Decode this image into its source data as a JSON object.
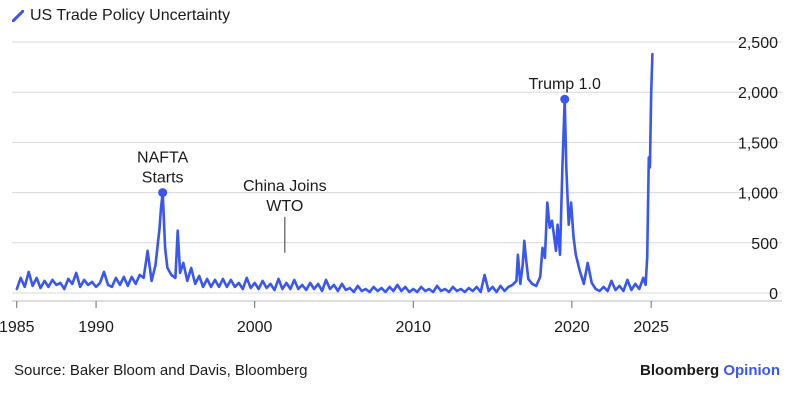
{
  "chart_data": {
    "type": "line",
    "title": "US Trade Policy Uncertainty",
    "series": [
      {
        "name": "US Trade Policy Uncertainty",
        "color": "#3a56f0",
        "points": [
          [
            1985.0,
            40
          ],
          [
            1985.25,
            150
          ],
          [
            1985.5,
            60
          ],
          [
            1985.75,
            210
          ],
          [
            1986.0,
            70
          ],
          [
            1986.25,
            150
          ],
          [
            1986.5,
            50
          ],
          [
            1986.75,
            120
          ],
          [
            1987.0,
            60
          ],
          [
            1987.25,
            130
          ],
          [
            1987.5,
            80
          ],
          [
            1987.75,
            100
          ],
          [
            1988.0,
            40
          ],
          [
            1988.25,
            140
          ],
          [
            1988.5,
            90
          ],
          [
            1988.75,
            200
          ],
          [
            1989.0,
            60
          ],
          [
            1989.25,
            130
          ],
          [
            1989.5,
            80
          ],
          [
            1989.75,
            110
          ],
          [
            1990.0,
            60
          ],
          [
            1990.25,
            100
          ],
          [
            1990.5,
            210
          ],
          [
            1990.75,
            80
          ],
          [
            1991.0,
            60
          ],
          [
            1991.25,
            150
          ],
          [
            1991.5,
            80
          ],
          [
            1991.75,
            160
          ],
          [
            1992.0,
            70
          ],
          [
            1992.25,
            160
          ],
          [
            1992.5,
            90
          ],
          [
            1992.75,
            180
          ],
          [
            1993.0,
            150
          ],
          [
            1993.25,
            420
          ],
          [
            1993.5,
            120
          ],
          [
            1993.75,
            280
          ],
          [
            1994.0,
            640
          ],
          [
            1994.1,
            860
          ],
          [
            1994.2,
            1000
          ],
          [
            1994.35,
            450
          ],
          [
            1994.5,
            250
          ],
          [
            1994.75,
            180
          ],
          [
            1995.0,
            150
          ],
          [
            1995.15,
            620
          ],
          [
            1995.3,
            200
          ],
          [
            1995.5,
            300
          ],
          [
            1995.75,
            120
          ],
          [
            1996.0,
            250
          ],
          [
            1996.25,
            90
          ],
          [
            1996.5,
            170
          ],
          [
            1996.75,
            60
          ],
          [
            1997.0,
            140
          ],
          [
            1997.25,
            60
          ],
          [
            1997.5,
            130
          ],
          [
            1997.75,
            60
          ],
          [
            1998.0,
            140
          ],
          [
            1998.25,
            60
          ],
          [
            1998.5,
            130
          ],
          [
            1998.75,
            60
          ],
          [
            1999.0,
            100
          ],
          [
            1999.25,
            40
          ],
          [
            1999.5,
            150
          ],
          [
            1999.75,
            50
          ],
          [
            2000.0,
            100
          ],
          [
            2000.25,
            40
          ],
          [
            2000.5,
            120
          ],
          [
            2000.75,
            50
          ],
          [
            2001.0,
            90
          ],
          [
            2001.25,
            30
          ],
          [
            2001.5,
            140
          ],
          [
            2001.75,
            40
          ],
          [
            2002.0,
            100
          ],
          [
            2002.25,
            40
          ],
          [
            2002.5,
            130
          ],
          [
            2002.75,
            40
          ],
          [
            2003.0,
            80
          ],
          [
            2003.25,
            30
          ],
          [
            2003.5,
            100
          ],
          [
            2003.75,
            40
          ],
          [
            2004.0,
            90
          ],
          [
            2004.25,
            20
          ],
          [
            2004.5,
            130
          ],
          [
            2004.75,
            40
          ],
          [
            2005.0,
            80
          ],
          [
            2005.25,
            20
          ],
          [
            2005.5,
            90
          ],
          [
            2005.75,
            30
          ],
          [
            2006.0,
            50
          ],
          [
            2006.25,
            10
          ],
          [
            2006.5,
            70
          ],
          [
            2006.75,
            20
          ],
          [
            2007.0,
            40
          ],
          [
            2007.25,
            10
          ],
          [
            2007.5,
            60
          ],
          [
            2007.75,
            20
          ],
          [
            2008.0,
            50
          ],
          [
            2008.25,
            10
          ],
          [
            2008.5,
            60
          ],
          [
            2008.75,
            20
          ],
          [
            2009.0,
            80
          ],
          [
            2009.25,
            20
          ],
          [
            2009.5,
            60
          ],
          [
            2009.75,
            10
          ],
          [
            2010.0,
            40
          ],
          [
            2010.25,
            10
          ],
          [
            2010.5,
            60
          ],
          [
            2010.75,
            20
          ],
          [
            2011.0,
            40
          ],
          [
            2011.25,
            10
          ],
          [
            2011.5,
            70
          ],
          [
            2011.75,
            20
          ],
          [
            2012.0,
            40
          ],
          [
            2012.25,
            10
          ],
          [
            2012.5,
            60
          ],
          [
            2012.75,
            20
          ],
          [
            2013.0,
            40
          ],
          [
            2013.25,
            10
          ],
          [
            2013.5,
            50
          ],
          [
            2013.75,
            20
          ],
          [
            2014.0,
            60
          ],
          [
            2014.25,
            10
          ],
          [
            2014.5,
            180
          ],
          [
            2014.75,
            20
          ],
          [
            2015.0,
            60
          ],
          [
            2015.25,
            10
          ],
          [
            2015.5,
            70
          ],
          [
            2015.75,
            20
          ],
          [
            2016.0,
            60
          ],
          [
            2016.25,
            80
          ],
          [
            2016.5,
            120
          ],
          [
            2016.6,
            380
          ],
          [
            2016.75,
            90
          ],
          [
            2016.9,
            280
          ],
          [
            2017.0,
            520
          ],
          [
            2017.1,
            350
          ],
          [
            2017.25,
            140
          ],
          [
            2017.5,
            90
          ],
          [
            2017.75,
            70
          ],
          [
            2018.0,
            160
          ],
          [
            2018.15,
            450
          ],
          [
            2018.3,
            350
          ],
          [
            2018.45,
            900
          ],
          [
            2018.6,
            650
          ],
          [
            2018.75,
            720
          ],
          [
            2018.9,
            540
          ],
          [
            2019.0,
            420
          ],
          [
            2019.1,
            680
          ],
          [
            2019.25,
            380
          ],
          [
            2019.4,
            1250
          ],
          [
            2019.55,
            1930
          ],
          [
            2019.65,
            1250
          ],
          [
            2019.8,
            680
          ],
          [
            2019.95,
            900
          ],
          [
            2020.1,
            560
          ],
          [
            2020.25,
            380
          ],
          [
            2020.5,
            220
          ],
          [
            2020.75,
            90
          ],
          [
            2021.0,
            300
          ],
          [
            2021.25,
            100
          ],
          [
            2021.5,
            40
          ],
          [
            2021.75,
            20
          ],
          [
            2022.0,
            60
          ],
          [
            2022.25,
            20
          ],
          [
            2022.5,
            120
          ],
          [
            2022.75,
            30
          ],
          [
            2023.0,
            70
          ],
          [
            2023.25,
            20
          ],
          [
            2023.5,
            130
          ],
          [
            2023.75,
            30
          ],
          [
            2024.0,
            90
          ],
          [
            2024.25,
            40
          ],
          [
            2024.5,
            150
          ],
          [
            2024.65,
            80
          ],
          [
            2024.75,
            350
          ],
          [
            2024.85,
            1350
          ],
          [
            2024.92,
            1250
          ],
          [
            2025.0,
            2000
          ],
          [
            2025.08,
            2380
          ]
        ]
      }
    ],
    "x_ticks": [
      1985,
      1990,
      2000,
      2010,
      2020,
      2025
    ],
    "x_tick_labels": [
      "1985",
      "1990",
      "2000",
      "2010",
      "2020",
      "2025"
    ],
    "xlim": [
      1984.7,
      2027.7
    ],
    "y_ticks": [
      0,
      500,
      1000,
      1500,
      2000,
      2500
    ],
    "y_tick_labels": [
      "0",
      "500",
      "1,000",
      "1,500",
      "2,000",
      "2,500"
    ],
    "ylim": [
      -70,
      2500
    ],
    "y_axis_side": "right",
    "grid": "horizontal",
    "legend_placement": "top-left",
    "annotations": [
      {
        "label_lines": [
          "NAFTA",
          "Starts"
        ],
        "x": 1994.2,
        "y": 1000,
        "marker": "dot"
      },
      {
        "label_lines": [
          "China Joins",
          "WTO"
        ],
        "x": 2001.9,
        "y": 400,
        "marker": "line"
      },
      {
        "label_lines": [
          "Trump 1.0"
        ],
        "x": 2019.55,
        "y": 1930,
        "marker": "dot"
      }
    ]
  },
  "footer": {
    "source": "Source: Baker Bloom and Davis, Bloomberg",
    "brand_main": "Bloomberg",
    "brand_accent": "Opinion"
  }
}
